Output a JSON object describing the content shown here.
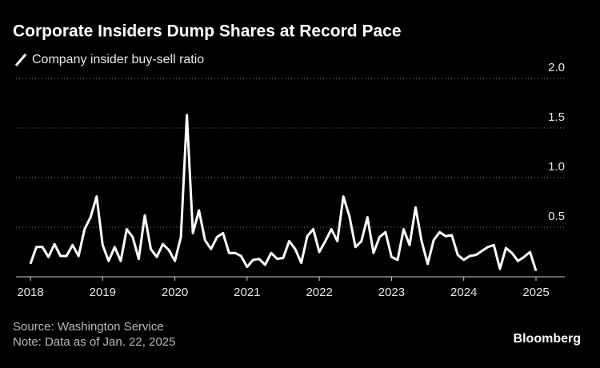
{
  "chart_data": {
    "type": "line",
    "title": "Corporate Insiders Dump Shares at Record Pace",
    "series": [
      {
        "name": "Company insider buy-sell ratio",
        "color": "#ffffff",
        "values": [
          0.13,
          0.3,
          0.3,
          0.2,
          0.33,
          0.21,
          0.21,
          0.32,
          0.21,
          0.48,
          0.6,
          0.81,
          0.32,
          0.16,
          0.3,
          0.16,
          0.48,
          0.4,
          0.18,
          0.62,
          0.28,
          0.2,
          0.33,
          0.27,
          0.16,
          0.4,
          1.63,
          0.44,
          0.67,
          0.37,
          0.28,
          0.4,
          0.44,
          0.24,
          0.24,
          0.21,
          0.1,
          0.17,
          0.18,
          0.12,
          0.24,
          0.18,
          0.19,
          0.36,
          0.28,
          0.14,
          0.41,
          0.48,
          0.25,
          0.36,
          0.48,
          0.36,
          0.81,
          0.61,
          0.3,
          0.36,
          0.6,
          0.24,
          0.4,
          0.45,
          0.2,
          0.17,
          0.48,
          0.32,
          0.7,
          0.36,
          0.13,
          0.37,
          0.45,
          0.41,
          0.42,
          0.22,
          0.17,
          0.21,
          0.22,
          0.26,
          0.3,
          0.32,
          0.08,
          0.29,
          0.24,
          0.16,
          0.2,
          0.25,
          0.06
        ]
      }
    ],
    "xlim": [
      2018,
      2025
    ],
    "xticks": [
      2018,
      2019,
      2020,
      2021,
      2022,
      2023,
      2024,
      2025
    ],
    "ylim": [
      0,
      2
    ],
    "yticks": [
      {
        "value": 0.5,
        "label": "0.5"
      },
      {
        "value": 1,
        "label": "1.0"
      },
      {
        "value": 1.5,
        "label": "1.5"
      },
      {
        "value": 2,
        "label": "2.0"
      }
    ],
    "grid": true,
    "source": "Source: Washington Service",
    "note": "Note: Data as of Jan. 22, 2025",
    "brand": "Bloomberg"
  }
}
